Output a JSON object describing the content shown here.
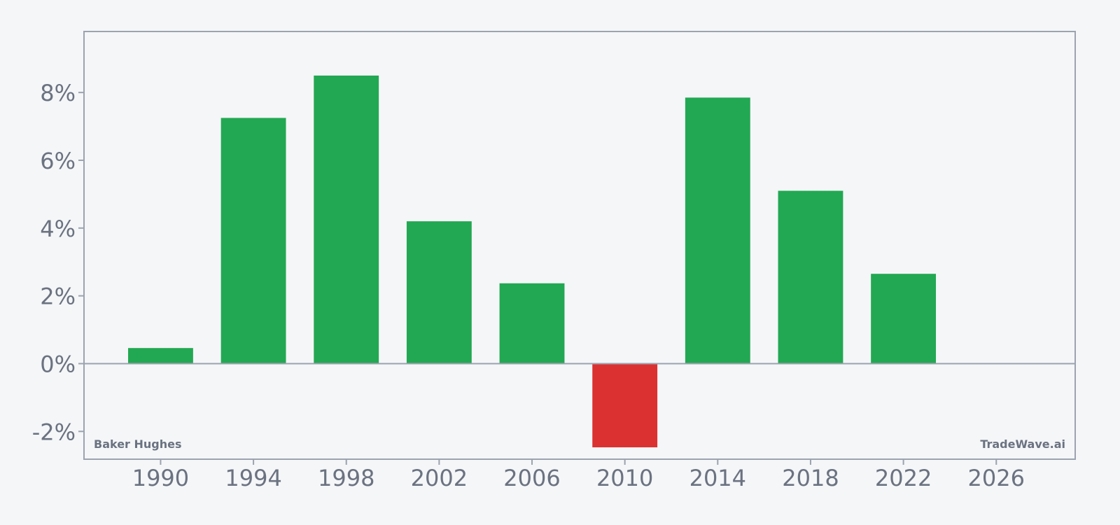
{
  "chart_data": {
    "type": "bar",
    "title": "",
    "xlabel": "",
    "ylabel": "",
    "x": [
      1990,
      1994,
      1998,
      2002,
      2006,
      2010,
      2014,
      2018,
      2022
    ],
    "values": [
      0.46,
      7.25,
      8.5,
      4.2,
      2.37,
      -2.47,
      7.85,
      5.1,
      2.65
    ],
    "xlim": [
      1986.7,
      2029.4
    ],
    "ylim": [
      -2.82,
      9.8
    ],
    "x_ticks": [
      1990,
      1994,
      1998,
      2002,
      2006,
      2010,
      2014,
      2018,
      2022,
      2026
    ],
    "y_ticks": [
      -2,
      0,
      2,
      4,
      6,
      8
    ],
    "y_tick_format": "percent",
    "bar_width_years": 2.8,
    "colors": {
      "positive": "#22a852",
      "negative": "#dc3131",
      "axis": "#9ca3af",
      "text": "#6b7280",
      "background": "#f4f6f8"
    },
    "grid": false,
    "legend": "none"
  },
  "labels": {
    "company": "Baker Hughes",
    "brand": "TradeWave.ai"
  }
}
